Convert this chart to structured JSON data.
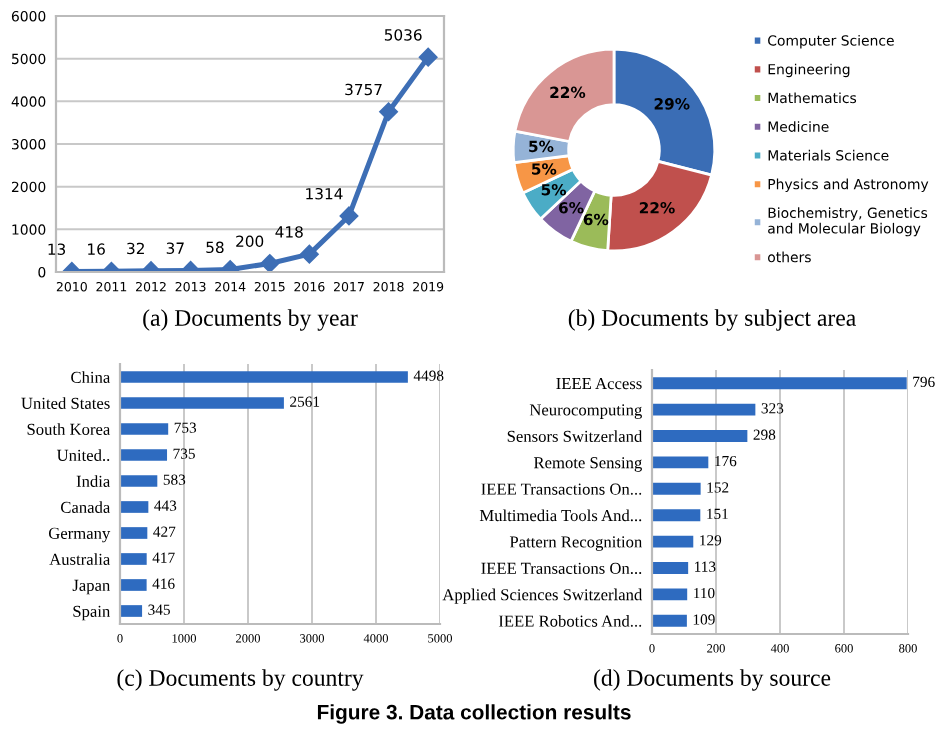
{
  "chart_data": [
    {
      "type": "line",
      "title": "(a) Documents by year",
      "categories": [
        "2010",
        "2011",
        "2012",
        "2013",
        "2014",
        "2015",
        "2016",
        "2017",
        "2018",
        "2019"
      ],
      "series": [
        {
          "color": "#3d6eb5",
          "values": [
            13,
            16,
            32,
            37,
            58,
            200,
            418,
            1314,
            3757,
            5036
          ]
        }
      ],
      "ylim": [
        0,
        6000
      ],
      "yticks": [
        0,
        1000,
        2000,
        3000,
        4000,
        5000,
        6000
      ],
      "grid": "y",
      "marker": "diamond",
      "line_style": "solid",
      "data_labels": true,
      "legend": false
    },
    {
      "type": "donut",
      "title": "(b) Documents by subject area",
      "categories": [
        "Computer Science",
        "Engineering",
        "Mathematics",
        "Medicine",
        "Materials Science",
        "Physics and Astronomy",
        "Biochemistry, Genetics and Molecular Biology",
        "others"
      ],
      "values": [
        29,
        22,
        6,
        6,
        5,
        5,
        5,
        22
      ],
      "colors": [
        "#3a6db5",
        "#c0504d",
        "#9bbb59",
        "#8064a2",
        "#4bacc6",
        "#f79646",
        "#95b3d7",
        "#d99694"
      ],
      "value_labels": [
        "29%",
        "22%",
        "6%",
        "6%",
        "5%",
        "5%",
        "5%",
        "22%"
      ],
      "legend": "right"
    },
    {
      "type": "bar",
      "orientation": "horizontal",
      "title": "(c) Documents by country",
      "categories": [
        "China",
        "United States",
        "South Korea",
        "United..",
        "India",
        "Canada",
        "Germany",
        "Australia",
        "Japan",
        "Spain"
      ],
      "series": [
        {
          "color": "#2e6bc0",
          "values": [
            4498,
            2561,
            753,
            735,
            583,
            443,
            427,
            417,
            416,
            345
          ]
        }
      ],
      "xlim": [
        0,
        5000
      ],
      "xticks": [
        0,
        1000,
        2000,
        3000,
        4000,
        5000
      ],
      "grid": "x",
      "data_labels": true
    },
    {
      "type": "bar",
      "orientation": "horizontal",
      "title": "(d) Documents by source",
      "categories": [
        "IEEE Access",
        "Neurocomputing",
        "Sensors Switzerland",
        "Remote Sensing",
        "IEEE Transactions On...",
        "Multimedia Tools And...",
        "Pattern Recognition",
        "IEEE Transactions On...",
        "Applied Sciences Switzerland",
        "IEEE Robotics And..."
      ],
      "series": [
        {
          "color": "#2e6bc0",
          "values": [
            796,
            323,
            298,
            176,
            152,
            151,
            129,
            113,
            110,
            109
          ]
        }
      ],
      "xlim": [
        0,
        800
      ],
      "xticks": [
        0,
        200,
        400,
        600,
        800
      ],
      "grid": "x",
      "data_labels": true,
      "annotations": [
        "Figure 3. Data collection results"
      ]
    }
  ]
}
